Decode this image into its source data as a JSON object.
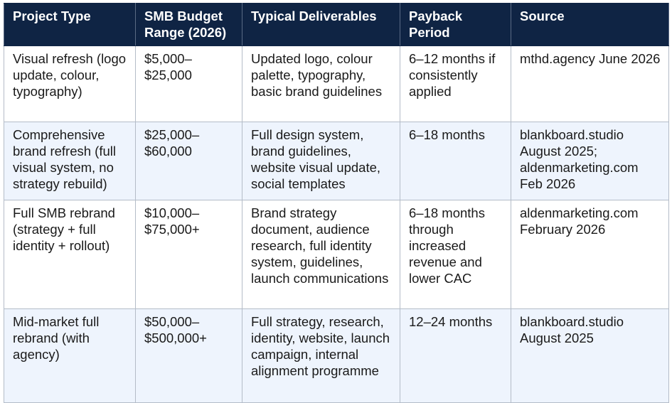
{
  "table": {
    "columns": [
      "Project Type",
      "SMB Budget Range (2026)",
      "Typical Deliverables",
      "Payback Period",
      "Source"
    ],
    "rows": [
      [
        "Visual refresh (logo update, colour, typography)",
        "$5,000–$25,000",
        "Updated logo, colour palette, typography, basic brand guidelines",
        "6–12 months if consistently applied",
        "mthd.agency June 2026"
      ],
      [
        "Comprehensive brand refresh (full visual system, no strategy rebuild)",
        "$25,000–$60,000",
        "Full design system, brand guidelines, website visual update, social templates",
        "6–18 months",
        "blankboard.studio August 2025; aldenmarketing.com Feb 2026"
      ],
      [
        "Full SMB rebrand (strategy + full identity + rollout)",
        "$10,000–$75,000+",
        "Brand strategy document, audience research, full identity system, guidelines, launch communications",
        "6–18 months through increased revenue and lower CAC",
        "aldenmarketing.com February 2026"
      ],
      [
        "Mid-market full rebrand (with agency)",
        "$50,000–$500,000+",
        "Full strategy, research, identity, website, launch campaign, internal alignment programme",
        "12–24 months",
        "blankboard.studio August 2025"
      ]
    ]
  }
}
